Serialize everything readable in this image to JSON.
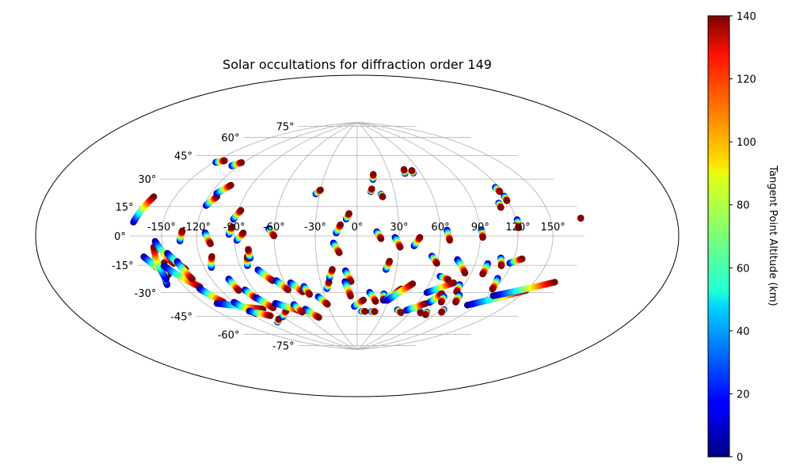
{
  "chart_data": {
    "type": "scatter",
    "title": "Solar occultations for diffraction order 149",
    "projection": "hammer",
    "xlabel": "",
    "ylabel": "",
    "xlim": [
      -180,
      180
    ],
    "ylim": [
      -90,
      90
    ],
    "grid": true,
    "lon_ticks": [
      -150,
      -120,
      -90,
      -60,
      -30,
      0,
      30,
      60,
      90,
      120,
      150
    ],
    "lon_tick_labels": [
      "-150°",
      "-120°",
      "-90°",
      "-60°",
      "-30°",
      "0°",
      "30°",
      "60°",
      "90°",
      "120°",
      "150°"
    ],
    "lat_ticks": [
      -75,
      -60,
      -45,
      -30,
      -15,
      0,
      15,
      30,
      45,
      60,
      75
    ],
    "lat_tick_labels": [
      "-75°",
      "-60°",
      "-45°",
      "-30°",
      "-15°",
      "0°",
      "15°",
      "30°",
      "45°",
      "60°",
      "75°"
    ],
    "colorbar": {
      "label": "Tangent Point Altitude (km)",
      "min": 0,
      "max": 140,
      "ticks": [
        0,
        20,
        40,
        60,
        80,
        100,
        120,
        140
      ],
      "colormap": "jet"
    },
    "tracks": [
      {
        "lon": [
          -178,
          -170
        ],
        "lat": [
          7,
          21
        ]
      },
      {
        "lon": [
          -163,
          -156
        ],
        "lat": [
          -17,
          -6
        ]
      },
      {
        "lon": [
          -170,
          -156
        ],
        "lat": [
          -11,
          -22
        ]
      },
      {
        "lon": [
          -165,
          -153
        ],
        "lat": [
          -27,
          -15
        ]
      },
      {
        "lon": [
          -161,
          -158
        ],
        "lat": [
          -24,
          -6
        ]
      },
      {
        "lon": [
          -156,
          -145
        ],
        "lat": [
          -3,
          -16
        ]
      },
      {
        "lon": [
          -155,
          -136
        ],
        "lat": [
          -17,
          -31
        ]
      },
      {
        "lon": [
          -147,
          -137
        ],
        "lat": [
          -10,
          -20
        ]
      },
      {
        "lon": [
          -141,
          -137
        ],
        "lat": [
          -15,
          -26
        ]
      },
      {
        "lon": [
          -138,
          -130
        ],
        "lat": [
          -32,
          -42
        ]
      },
      {
        "lon": [
          -138,
          -100
        ],
        "lat": [
          -42,
          -50
        ]
      },
      {
        "lon": [
          -120,
          -114
        ],
        "lat": [
          -43,
          -52
        ]
      },
      {
        "lon": [
          -117,
          -102
        ],
        "lat": [
          -50,
          -55
        ]
      },
      {
        "lon": [
          -134,
          -132
        ],
        "lat": [
          -3,
          3
        ]
      },
      {
        "lon": [
          -114,
          -110
        ],
        "lat": [
          -20,
          -13
        ]
      },
      {
        "lon": [
          -105,
          -104
        ],
        "lat": [
          -28,
          -36
        ]
      },
      {
        "lon": [
          -98,
          -95
        ],
        "lat": [
          -36,
          -42
        ]
      },
      {
        "lon": [
          -94,
          -88
        ],
        "lat": [
          -42,
          -50
        ]
      },
      {
        "lon": [
          -106,
          -98
        ],
        "lat": [
          -60,
          -58
        ]
      },
      {
        "lon": [
          -90,
          -78
        ],
        "lat": [
          -57,
          -53
        ]
      },
      {
        "lon": [
          -81,
          -63
        ],
        "lat": [
          -47,
          -54
        ]
      },
      {
        "lon": [
          -56,
          -48
        ],
        "lat": [
          -53,
          -60
        ]
      },
      {
        "lon": [
          -64,
          -62
        ],
        "lat": [
          -49,
          -55
        ]
      },
      {
        "lon": [
          -113,
          -109
        ],
        "lat": [
          2,
          -5
        ]
      },
      {
        "lon": [
          -118,
          -113
        ],
        "lat": [
          19,
          25
        ]
      },
      {
        "lon": [
          -115,
          -108
        ],
        "lat": [
          27,
          33
        ]
      },
      {
        "lon": [
          -127,
          -122
        ],
        "lat": [
          45,
          48
        ]
      },
      {
        "lon": [
          -148,
          -142
        ],
        "lat": [
          45,
          47
        ]
      },
      {
        "lon": [
          -94,
          -92
        ],
        "lat": [
          1,
          6
        ]
      },
      {
        "lon": [
          -92,
          -88
        ],
        "lat": [
          11,
          17
        ]
      },
      {
        "lon": [
          -88,
          -83
        ],
        "lat": [
          -3,
          2
        ]
      },
      {
        "lon": [
          -84,
          -82
        ],
        "lat": [
          -20,
          -14
        ]
      },
      {
        "lon": [
          -80,
          -80
        ],
        "lat": [
          -15,
          -9
        ]
      },
      {
        "lon": [
          -77,
          -69
        ],
        "lat": [
          -23,
          -31
        ]
      },
      {
        "lon": [
          -66,
          -60
        ],
        "lat": [
          -31,
          -38
        ]
      },
      {
        "lon": [
          -55,
          -48
        ],
        "lat": [
          -33,
          -40
        ]
      },
      {
        "lon": [
          -45,
          -43
        ],
        "lat": [
          -36,
          -42
        ]
      },
      {
        "lon": [
          -64,
          -60
        ],
        "lat": [
          5,
          0
        ]
      },
      {
        "lon": [
          -33,
          -30
        ],
        "lat": [
          30,
          33
        ]
      },
      {
        "lon": [
          -36,
          -30
        ],
        "lat": [
          -44,
          -50
        ]
      },
      {
        "lon": [
          -26,
          -23
        ],
        "lat": [
          -38,
          -33
        ]
      },
      {
        "lon": [
          -22,
          -19
        ],
        "lat": [
          -30,
          -24
        ]
      },
      {
        "lon": [
          -17,
          -13
        ],
        "lat": [
          -5,
          -12
        ]
      },
      {
        "lon": [
          -15,
          -12
        ],
        "lat": [
          2,
          8
        ]
      },
      {
        "lon": [
          -8,
          -6
        ],
        "lat": [
          12,
          16
        ]
      },
      {
        "lon": [
          -9,
          -5
        ],
        "lat": [
          -25,
          -33
        ]
      },
      {
        "lon": [
          -10,
          -6
        ],
        "lat": [
          -33,
          -44
        ]
      },
      {
        "lon": [
          -3,
          6
        ],
        "lat": [
          -52,
          -47
        ]
      },
      {
        "lon": [
          5,
          9
        ],
        "lat": [
          -56,
          -56
        ]
      },
      {
        "lon": [
          14,
          15
        ],
        "lat": [
          41,
          45
        ]
      },
      {
        "lon": [
          11,
          12
        ],
        "lat": [
          32,
          34
        ]
      },
      {
        "lon": [
          14,
          17
        ],
        "lat": [
          3,
          -2
        ]
      },
      {
        "lon": [
          11,
          18
        ],
        "lat": [
          -41,
          -48
        ]
      },
      {
        "lon": [
          16,
          20
        ],
        "lat": [
          -56,
          -56
        ]
      },
      {
        "lon": [
          19,
          20
        ],
        "lat": [
          30,
          28
        ]
      },
      {
        "lon": [
          22,
          24
        ],
        "lat": [
          -24,
          -18
        ]
      },
      {
        "lon": [
          24,
          25
        ],
        "lat": [
          -42,
          -47
        ]
      },
      {
        "lon": [
          27,
          31
        ],
        "lat": [
          -1,
          -8
        ]
      },
      {
        "lon": [
          26,
          38
        ],
        "lat": [
          -47,
          -38
        ]
      },
      {
        "lon": [
          29,
          46
        ],
        "lat": [
          -47,
          -34
        ]
      },
      {
        "lon": [
          41,
          45
        ],
        "lat": [
          -7,
          -1
        ]
      },
      {
        "lon": [
          45,
          46
        ],
        "lat": [
          45,
          48
        ]
      },
      {
        "lon": [
          44,
          50
        ],
        "lat": [
          -54,
          -56
        ]
      },
      {
        "lon": [
          54,
          68
        ],
        "lat": [
          -54,
          -48
        ]
      },
      {
        "lon": [
          55,
          60
        ],
        "lat": [
          -14,
          -19
        ]
      },
      {
        "lon": [
          53,
          53
        ],
        "lat": [
          45,
          47
        ]
      },
      {
        "lon": [
          62,
          80
        ],
        "lat": [
          -40,
          -32
        ]
      },
      {
        "lon": [
          66,
          74
        ],
        "lat": [
          -28,
          -30
        ]
      },
      {
        "lon": [
          65,
          67
        ],
        "lat": [
          4,
          -3
        ]
      },
      {
        "lon": [
          71,
          76
        ],
        "lat": [
          -47,
          -40
        ]
      },
      {
        "lon": [
          70,
          72
        ],
        "lat": [
          -54,
          -55
        ]
      },
      {
        "lon": [
          75,
          85
        ],
        "lat": [
          -16,
          -25
        ]
      },
      {
        "lon": [
          80,
          82
        ],
        "lat": [
          -42,
          -46
        ]
      },
      {
        "lon": [
          78,
          80
        ],
        "lat": [
          -54,
          -56
        ]
      },
      {
        "lon": [
          86,
          88
        ],
        "lat": [
          -33,
          -38
        ]
      },
      {
        "lon": [
          91,
          92
        ],
        "lat": [
          4,
          -1
        ]
      },
      {
        "lon": [
          93,
          96
        ],
        "lat": [
          -40,
          -45
        ]
      },
      {
        "lon": [
          93,
          94
        ],
        "lat": [
          -51,
          -53
        ]
      },
      {
        "lon": [
          100,
          100
        ],
        "lat": [
          -18,
          -25
        ]
      },
      {
        "lon": [
          109,
          112
        ],
        "lat": [
          -14,
          -19
        ]
      },
      {
        "lon": [
          115,
          118
        ],
        "lat": [
          -27,
          -34
        ]
      },
      {
        "lon": [
          118,
          127
        ],
        "lat": [
          -17,
          -14
        ]
      },
      {
        "lon": [
          111,
          150
        ],
        "lat": [
          -46,
          -32
        ]
      },
      {
        "lon": [
          125,
          170
        ],
        "lat": [
          -38,
          -25
        ]
      },
      {
        "lon": [
          111,
          111
        ],
        "lat": [
          21,
          18
        ]
      },
      {
        "lon": [
          117,
          118
        ],
        "lat": [
          31,
          28
        ]
      },
      {
        "lon": [
          119,
          119
        ],
        "lat": [
          25,
          22
        ]
      },
      {
        "lon": [
          121,
          121
        ],
        "lat": [
          10,
          5
        ]
      },
      {
        "lon": [
          179,
          179
        ],
        "lat": [
          9,
          9
        ]
      }
    ]
  }
}
